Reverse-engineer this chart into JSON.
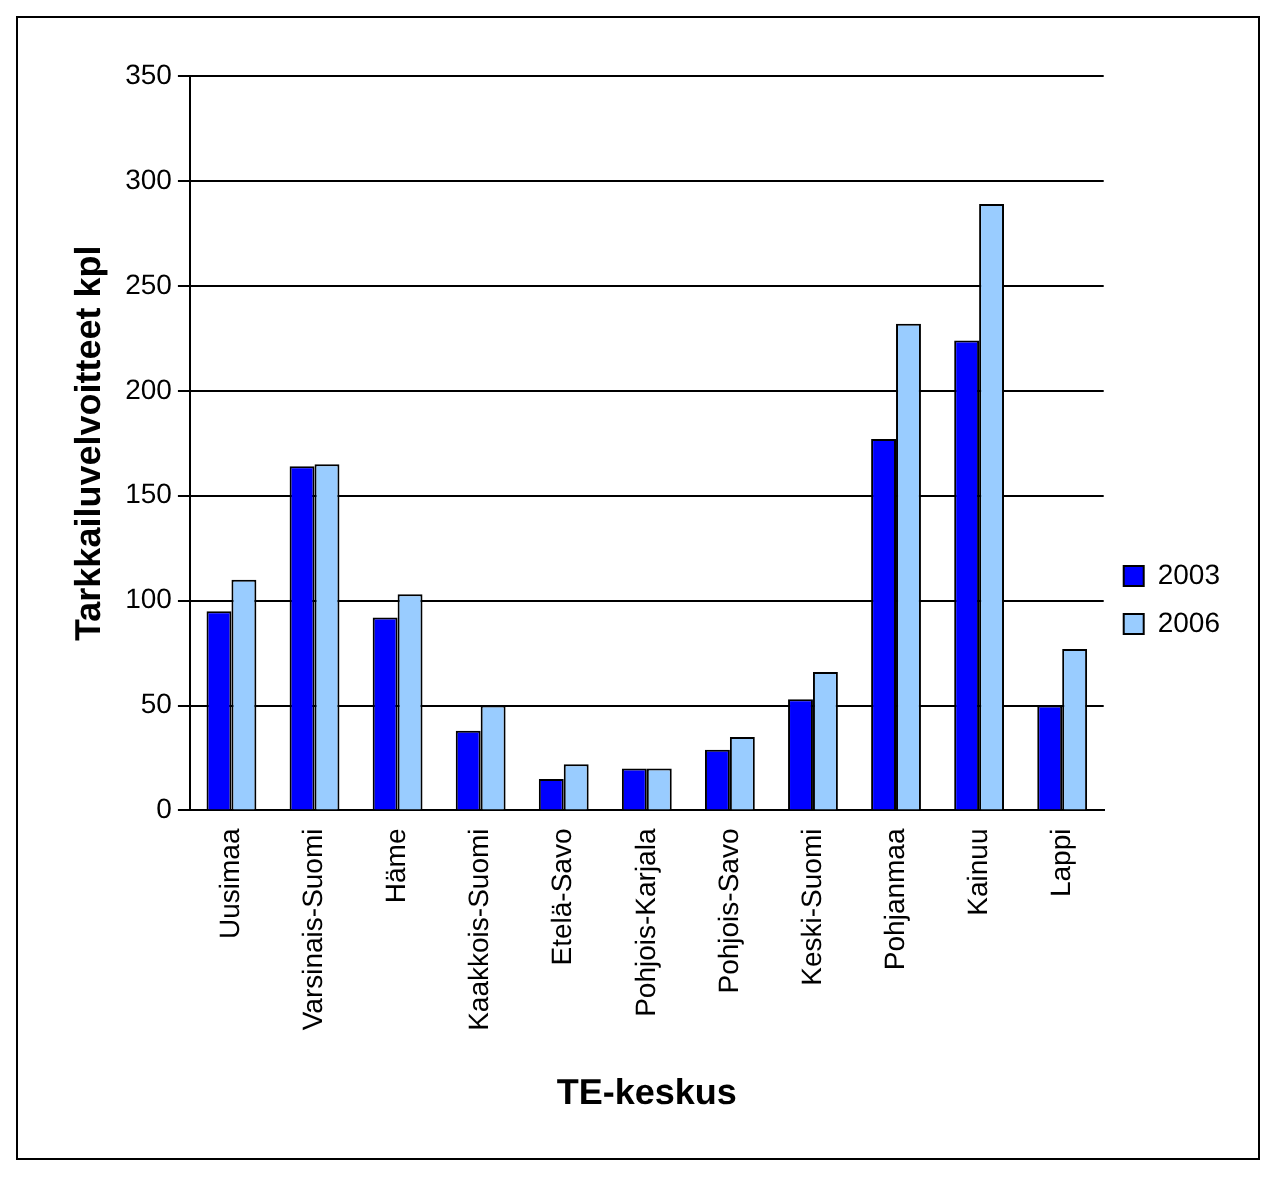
{
  "chart_data": {
    "type": "bar",
    "xlabel": "TE-keskus",
    "ylabel": "Tarkkailuvelvoitteet kpl",
    "categories": [
      "Uusimaa",
      "Varsinais-Suomi",
      "Häme",
      "Kaakkois-Suomi",
      "Etelä-Savo",
      "Pohjois-Karjala",
      "Pohjois-Savo",
      "Keski-Suomi",
      "Pohjanmaa",
      "Kainuu",
      "Lappi"
    ],
    "series": [
      {
        "name": "2003",
        "color": "#0000ff",
        "values": [
          95,
          164,
          92,
          38,
          15,
          20,
          29,
          53,
          177,
          224,
          50
        ]
      },
      {
        "name": "2006",
        "color": "#99ccff",
        "values": [
          110,
          165,
          103,
          50,
          22,
          20,
          35,
          66,
          232,
          289,
          77
        ]
      }
    ],
    "ylim": [
      0,
      350
    ],
    "yticks": [
      0,
      50,
      100,
      150,
      200,
      250,
      300,
      350
    ],
    "grid": "y",
    "legend": "right"
  }
}
